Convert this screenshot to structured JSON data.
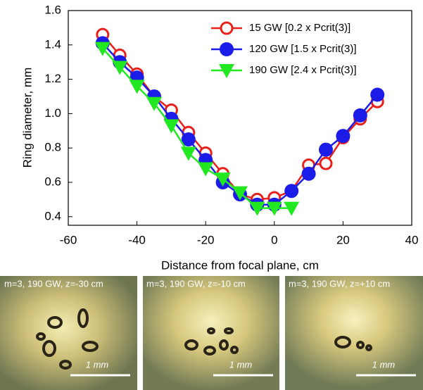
{
  "chart_data": {
    "type": "line",
    "x_label": "Distance from focal plane, cm",
    "y_label": "Ring diameter, mm",
    "x": [
      -50,
      -45,
      -40,
      -35,
      -30,
      -25,
      -20,
      -15,
      -10,
      -5,
      0,
      5,
      10,
      15,
      20,
      25,
      30
    ],
    "series": [
      {
        "name": "15 GW [0.2 x Pcrit(3)]",
        "color": "#e8201c",
        "marker": "open-circle",
        "values": [
          1.46,
          1.34,
          1.23,
          1.1,
          1.02,
          0.89,
          0.77,
          0.65,
          0.53,
          0.5,
          0.51,
          0.55,
          0.7,
          0.71,
          0.86,
          0.97,
          1.07
        ]
      },
      {
        "name": "120 GW [1.5 x Pcrit(3)]",
        "color": "#1c1ce8",
        "marker": "circle",
        "values": [
          1.41,
          1.3,
          1.21,
          1.1,
          0.97,
          0.85,
          0.73,
          0.6,
          0.53,
          0.47,
          0.47,
          0.55,
          0.65,
          0.79,
          0.87,
          0.99,
          1.11
        ]
      },
      {
        "name": "190 GW [2.4 x Pcrit(3)]",
        "color": "#22e822",
        "marker": "triangle-down",
        "values": [
          1.38,
          1.27,
          1.16,
          1.06,
          0.93,
          0.77,
          0.68,
          0.62,
          0.54,
          0.45,
          0.45,
          0.45,
          null,
          null,
          null,
          null,
          null
        ]
      }
    ],
    "xlim": [
      -60,
      40
    ],
    "xticks": [
      -60,
      -40,
      -20,
      0,
      20,
      40
    ],
    "ylim": [
      0.35,
      1.6
    ],
    "yticks": [
      {
        "value": 0.4,
        "label": "0.4"
      },
      {
        "value": 0.6,
        "label": "0.6"
      },
      {
        "value": 0.8,
        "label": "0.8"
      },
      {
        "value": 1.0,
        "label": "1.0"
      },
      {
        "value": 1.2,
        "label": "1.2"
      },
      {
        "value": 1.4,
        "label": "1.4"
      },
      {
        "value": 1.6,
        "label": "1.6"
      }
    ],
    "legend": "upper-right"
  },
  "images": [
    {
      "caption": "m=3, 190 GW, z=-30 cm",
      "scale_label": "1 mm"
    },
    {
      "caption": "m=3, 190 GW, z=-10 cm",
      "scale_label": "1 mm"
    },
    {
      "caption": "m=3, 190 GW, z=+10 cm",
      "scale_label": "1 mm"
    }
  ]
}
